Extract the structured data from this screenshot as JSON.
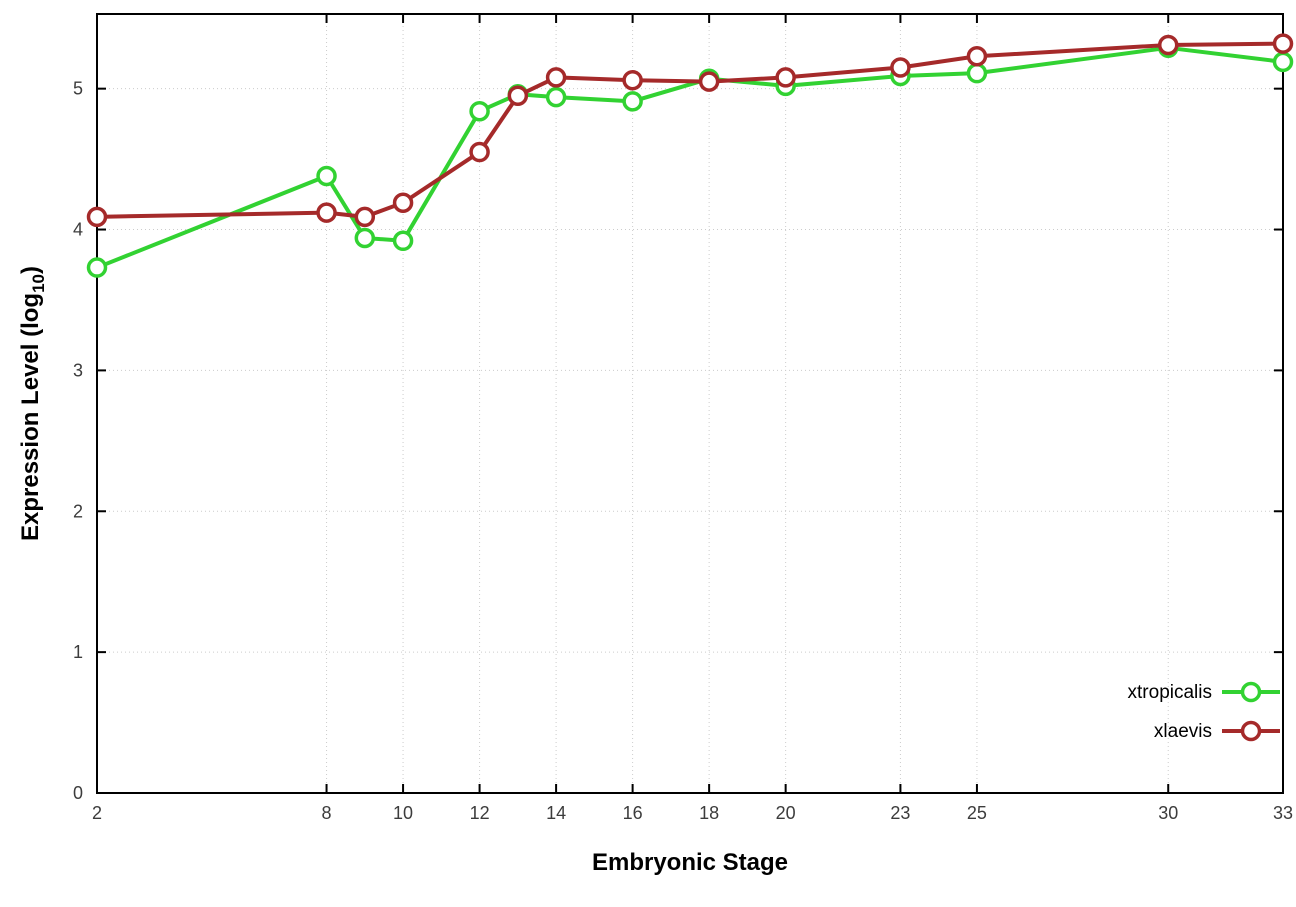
{
  "chart_data": {
    "type": "line",
    "title": "",
    "xlabel": "Embryonic Stage",
    "ylabel": "Expression Level (log10)",
    "ylabel_main": "Expression Level (log",
    "ylabel_sub": "10",
    "ylabel_end": ")",
    "x": [
      2,
      8,
      9,
      10,
      12,
      13,
      14,
      16,
      18,
      20,
      23,
      25,
      30,
      33
    ],
    "x_tick_labels": [
      2,
      8,
      10,
      12,
      14,
      16,
      18,
      20,
      23,
      25,
      30,
      33
    ],
    "y_tick_labels": [
      0,
      1,
      2,
      3,
      4,
      5
    ],
    "xlim": [
      2,
      33
    ],
    "ylim": [
      0,
      5.53
    ],
    "grid": true,
    "legend_position": "bottom-right-inside",
    "marker": "open-circle",
    "series": [
      {
        "name": "xtropicalis",
        "color": "#32d232",
        "values": [
          3.73,
          4.38,
          3.94,
          3.92,
          4.84,
          4.96,
          4.94,
          4.91,
          5.07,
          5.02,
          5.09,
          5.11,
          5.29,
          5.19
        ]
      },
      {
        "name": "xlaevis",
        "color": "#a52a2a",
        "values": [
          4.09,
          4.12,
          4.09,
          4.19,
          4.55,
          4.95,
          5.08,
          5.06,
          5.05,
          5.08,
          5.15,
          5.23,
          5.31,
          5.32
        ]
      }
    ],
    "axis_color": "#000000",
    "grid_color": "#cccccc",
    "tick_label_color": "#3c3c3c",
    "background_color": "#ffffff"
  }
}
